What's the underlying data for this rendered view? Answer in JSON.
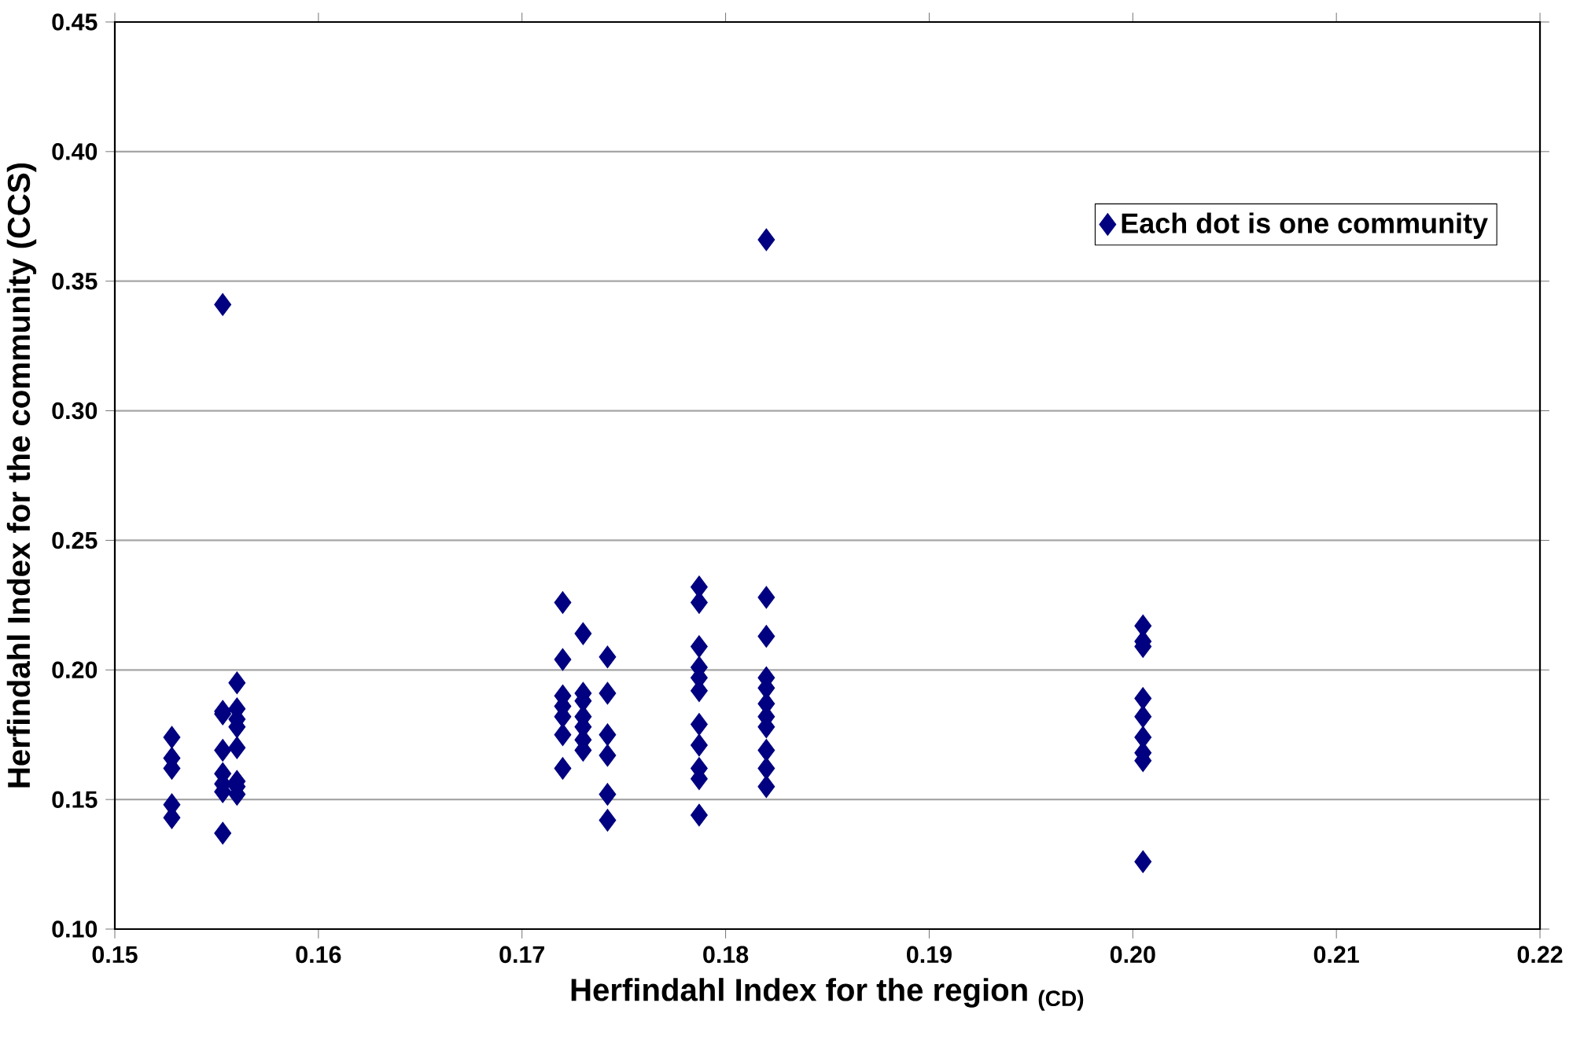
{
  "chart_data": {
    "type": "scatter",
    "xlabel": "Herfindahl Index for the region $_{(CD)}$",
    "ylabel": "Herfindahl Index for the community (CCS)",
    "series": [
      {
        "name": "Each dot is one community",
        "color": "#000080",
        "x": [
          0.1528,
          0.1528,
          0.1528,
          0.1528,
          0.1528,
          0.1553,
          0.1553,
          0.1553,
          0.1553,
          0.1553,
          0.1553,
          0.1553,
          0.1553,
          0.156,
          0.156,
          0.156,
          0.156,
          0.156,
          0.156,
          0.156,
          0.156,
          0.172,
          0.172,
          0.172,
          0.172,
          0.172,
          0.172,
          0.172,
          0.173,
          0.173,
          0.173,
          0.173,
          0.173,
          0.173,
          0.173,
          0.1742,
          0.1742,
          0.1742,
          0.1742,
          0.1742,
          0.1742,
          0.1787,
          0.1787,
          0.1787,
          0.1787,
          0.1787,
          0.1787,
          0.1787,
          0.1787,
          0.1787,
          0.1787,
          0.1787,
          0.182,
          0.182,
          0.182,
          0.182,
          0.182,
          0.182,
          0.182,
          0.182,
          0.182,
          0.182,
          0.182,
          0.2005,
          0.2005,
          0.2005,
          0.2005,
          0.2005,
          0.2005,
          0.2005,
          0.2005,
          0.2005
        ],
        "values": [
          0.174,
          0.166,
          0.162,
          0.148,
          0.143,
          0.341,
          0.184,
          0.183,
          0.169,
          0.16,
          0.156,
          0.153,
          0.137,
          0.195,
          0.185,
          0.181,
          0.178,
          0.17,
          0.157,
          0.155,
          0.152,
          0.226,
          0.204,
          0.19,
          0.186,
          0.182,
          0.175,
          0.162,
          0.214,
          0.191,
          0.188,
          0.182,
          0.178,
          0.173,
          0.169,
          0.205,
          0.191,
          0.175,
          0.167,
          0.152,
          0.142,
          0.232,
          0.226,
          0.209,
          0.201,
          0.197,
          0.192,
          0.179,
          0.171,
          0.162,
          0.158,
          0.144,
          0.366,
          0.228,
          0.213,
          0.197,
          0.193,
          0.187,
          0.182,
          0.178,
          0.169,
          0.162,
          0.155,
          0.217,
          0.211,
          0.209,
          0.189,
          0.182,
          0.174,
          0.168,
          0.165,
          0.126
        ]
      }
    ],
    "xlim": [
      0.15,
      0.22
    ],
    "xticks": [
      0.15,
      0.16,
      0.17,
      0.18,
      0.19,
      {
        "value": 0.2,
        "label": "0.20"
      },
      0.21,
      0.22
    ],
    "ylim": [
      0.1,
      0.45
    ],
    "yticks": [
      {
        "value": 0.1,
        "label": "0.10"
      },
      0.15,
      {
        "value": 0.2,
        "label": "0.20"
      },
      0.25,
      {
        "value": 0.3,
        "label": "0.30"
      },
      0.35,
      {
        "value": 0.4,
        "label": "0.40"
      },
      0.45
    ],
    "grid": "y",
    "legend": "top right",
    "marker": "diamond"
  }
}
